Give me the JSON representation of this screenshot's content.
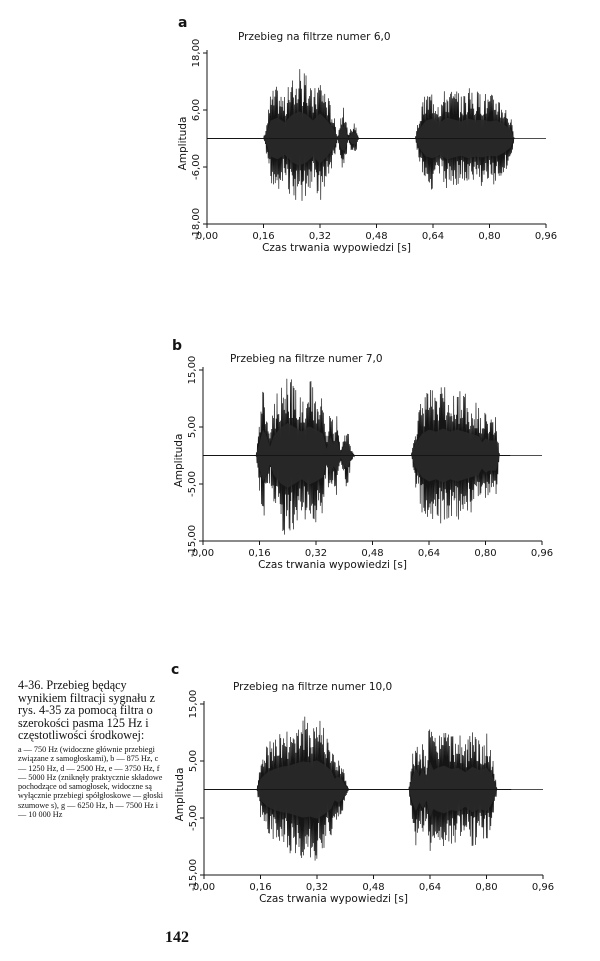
{
  "chart_data": [
    {
      "type": "line",
      "panel_letter": "a",
      "title": "Przebieg na filtrze numer 6,0",
      "xlabel": "Czas trwania wypowiedzi [s]",
      "ylabel": "Amplituda",
      "xlim": [
        0,
        0.96
      ],
      "ylim": [
        -18,
        18
      ],
      "x_ticks": [
        "0,00",
        "0,16",
        "0,32",
        "0,48",
        "0,64",
        "0,80",
        "0,96"
      ],
      "y_ticks": [
        "18,00",
        "6,00",
        "-6,00",
        "-18,00"
      ],
      "y_tick_values": [
        18,
        6,
        -6,
        -18
      ],
      "grid": false,
      "series": [
        {
          "envelope": [
            [
              0.0,
              0.0
            ],
            [
              0.16,
              0.0
            ],
            [
              0.17,
              4.0
            ],
            [
              0.18,
              10.0
            ],
            [
              0.2,
              11.5
            ],
            [
              0.22,
              9.0
            ],
            [
              0.24,
              13.0
            ],
            [
              0.26,
              15.0
            ],
            [
              0.28,
              13.5
            ],
            [
              0.3,
              10.0
            ],
            [
              0.32,
              14.0
            ],
            [
              0.34,
              10.0
            ],
            [
              0.36,
              5.0
            ],
            [
              0.37,
              0.3
            ],
            [
              0.38,
              6.0
            ],
            [
              0.39,
              7.0
            ],
            [
              0.4,
              0.3
            ],
            [
              0.41,
              3.0
            ],
            [
              0.42,
              3.5
            ],
            [
              0.43,
              0.0
            ],
            [
              0.59,
              0.0
            ],
            [
              0.6,
              5.0
            ],
            [
              0.62,
              10.0
            ],
            [
              0.64,
              11.0
            ],
            [
              0.66,
              9.0
            ],
            [
              0.68,
              11.5
            ],
            [
              0.7,
              10.5
            ],
            [
              0.72,
              9.5
            ],
            [
              0.74,
              11.0
            ],
            [
              0.76,
              10.0
            ],
            [
              0.78,
              10.5
            ],
            [
              0.8,
              9.5
            ],
            [
              0.82,
              10.0
            ],
            [
              0.84,
              8.0
            ],
            [
              0.86,
              5.0
            ],
            [
              0.87,
              0.0
            ],
            [
              0.96,
              0.0
            ]
          ]
        }
      ]
    },
    {
      "type": "line",
      "panel_letter": "b",
      "title": "Przebieg na filtrze numer 7,0",
      "xlabel": "Czas trwania wypowiedzi [s]",
      "ylabel": "Amplituda",
      "xlim": [
        0,
        0.96
      ],
      "ylim": [
        -15,
        15
      ],
      "x_ticks": [
        "0,00",
        "0,16",
        "0,32",
        "0,48",
        "0,64",
        "0,80",
        "0,96"
      ],
      "y_ticks": [
        "15,00",
        "5,00",
        "-5,00",
        "-15,00"
      ],
      "y_tick_values": [
        15,
        5,
        -5,
        -15
      ],
      "grid": false,
      "series": [
        {
          "envelope": [
            [
              0.0,
              0.0
            ],
            [
              0.15,
              0.0
            ],
            [
              0.16,
              6.0
            ],
            [
              0.17,
              12.0
            ],
            [
              0.18,
              9.0
            ],
            [
              0.19,
              4.0
            ],
            [
              0.2,
              9.0
            ],
            [
              0.21,
              11.0
            ],
            [
              0.22,
              13.0
            ],
            [
              0.24,
              15.0
            ],
            [
              0.26,
              13.0
            ],
            [
              0.28,
              11.0
            ],
            [
              0.3,
              13.5
            ],
            [
              0.32,
              12.0
            ],
            [
              0.34,
              10.0
            ],
            [
              0.35,
              3.0
            ],
            [
              0.36,
              9.0
            ],
            [
              0.37,
              5.0
            ],
            [
              0.38,
              7.5
            ],
            [
              0.39,
              1.0
            ],
            [
              0.4,
              5.0
            ],
            [
              0.41,
              6.0
            ],
            [
              0.42,
              1.0
            ],
            [
              0.43,
              0.0
            ],
            [
              0.59,
              0.0
            ],
            [
              0.6,
              5.0
            ],
            [
              0.62,
              10.0
            ],
            [
              0.64,
              12.0
            ],
            [
              0.66,
              11.0
            ],
            [
              0.68,
              12.5
            ],
            [
              0.7,
              11.0
            ],
            [
              0.72,
              12.0
            ],
            [
              0.74,
              11.0
            ],
            [
              0.76,
              10.0
            ],
            [
              0.78,
              9.0
            ],
            [
              0.79,
              6.0
            ],
            [
              0.8,
              8.0
            ],
            [
              0.81,
              7.0
            ],
            [
              0.83,
              7.0
            ],
            [
              0.84,
              0.0
            ],
            [
              0.96,
              0.0
            ]
          ]
        }
      ]
    },
    {
      "type": "line",
      "panel_letter": "c",
      "title": "Przebieg na filtrze numer 10,0",
      "xlabel": "Czas trwania wypowiedzi [s]",
      "ylabel": "Amplituda",
      "xlim": [
        0,
        0.96
      ],
      "ylim": [
        -15,
        15
      ],
      "x_ticks": [
        "0,00",
        "0,16",
        "0,32",
        "0,48",
        "0,64",
        "0,80",
        "0,96"
      ],
      "y_ticks": [
        "15,00",
        "5,00",
        "-5,00",
        "-15,00"
      ],
      "y_tick_values": [
        15,
        5,
        -5,
        -15
      ],
      "grid": false,
      "series": [
        {
          "envelope": [
            [
              0.0,
              0.0
            ],
            [
              0.15,
              0.0
            ],
            [
              0.16,
              5.0
            ],
            [
              0.18,
              8.0
            ],
            [
              0.2,
              9.5
            ],
            [
              0.22,
              10.5
            ],
            [
              0.24,
              11.0
            ],
            [
              0.26,
              12.0
            ],
            [
              0.28,
              13.0
            ],
            [
              0.3,
              12.5
            ],
            [
              0.32,
              13.5
            ],
            [
              0.34,
              11.5
            ],
            [
              0.36,
              9.0
            ],
            [
              0.37,
              5.0
            ],
            [
              0.38,
              6.0
            ],
            [
              0.39,
              5.0
            ],
            [
              0.4,
              2.0
            ],
            [
              0.41,
              0.0
            ],
            [
              0.58,
              0.0
            ],
            [
              0.59,
              6.0
            ],
            [
              0.6,
              10.0
            ],
            [
              0.61,
              6.0
            ],
            [
              0.62,
              9.0
            ],
            [
              0.63,
              5.0
            ],
            [
              0.64,
              13.0
            ],
            [
              0.65,
              9.0
            ],
            [
              0.66,
              10.0
            ],
            [
              0.68,
              11.0
            ],
            [
              0.7,
              9.5
            ],
            [
              0.72,
              10.0
            ],
            [
              0.74,
              8.0
            ],
            [
              0.76,
              10.5
            ],
            [
              0.78,
              9.0
            ],
            [
              0.8,
              10.0
            ],
            [
              0.81,
              8.0
            ],
            [
              0.82,
              5.0
            ],
            [
              0.83,
              0.0
            ],
            [
              0.96,
              0.0
            ]
          ]
        }
      ]
    }
  ],
  "caption": {
    "main": "4-36. Przebieg będący wynikiem filtracji sygnału z rys. 4-35 za pomocą filtra o szerokości pasma 125 Hz i częstotliwości środkowej:",
    "detail": "a — 750 Hz (widoczne głównie przebiegi związane z samogłoskami), b — 875 Hz, c — 1250 Hz, d — 2500 Hz, e — 3750 Hz, f — 5000 Hz (zniknęły praktycznie składowe pochodzące od samogłosek, widoczne są wyłącznie przebiegi spółgłoskowe — głoski szumowe s), g — 6250 Hz, h — 7500 Hz i — 10 000 Hz"
  },
  "page_number": "142"
}
